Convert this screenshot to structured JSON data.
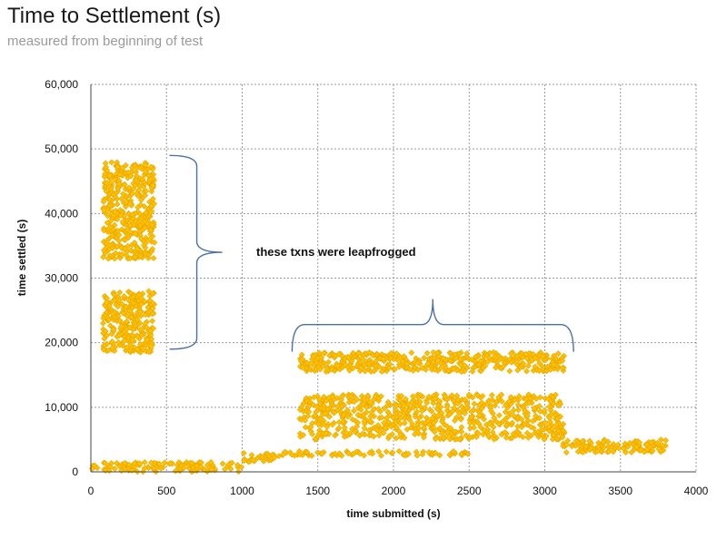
{
  "chart_data": {
    "type": "scatter",
    "title": "Time to Settlement (s)",
    "subtitle": "measured from beginning of test",
    "xlabel": "time submitted  (s)",
    "ylabel": "time settled  (s)",
    "xlim": [
      0,
      4000
    ],
    "ylim": [
      0,
      60000
    ],
    "x_ticks": [
      "0",
      "500",
      "1000",
      "1500",
      "2000",
      "2500",
      "3000",
      "3500",
      "4000"
    ],
    "y_ticks": [
      "0",
      "10,000",
      "20,000",
      "30,000",
      "40,000",
      "50,000",
      "60,000"
    ],
    "grid": true,
    "marker_color": "#FFC000",
    "annotations": [
      {
        "text": "these txns were leapfrogged",
        "brace": "vertical",
        "range_y": [
          19000,
          49000
        ],
        "x": 700
      },
      {
        "text": "",
        "brace": "horizontal",
        "range_x": [
          1330,
          3190
        ],
        "y": 20000
      }
    ],
    "series": [
      {
        "clusters": [
          {
            "x": [
              0,
              1000
            ],
            "y": [
              0,
              1500
            ]
          },
          {
            "x": [
              1000,
              1250
            ],
            "y": [
              1500,
              2900
            ]
          },
          {
            "x": [
              1250,
              2500
            ],
            "y": [
              2500,
              3200
            ]
          },
          {
            "x": [
              80,
              420
            ],
            "y": [
              18500,
              28000
            ]
          },
          {
            "x": [
              80,
              420
            ],
            "y": [
              33000,
              48000
            ]
          },
          {
            "x": [
              1380,
              3130
            ],
            "y": [
              5000,
              12000
            ]
          },
          {
            "x": [
              1380,
              3130
            ],
            "y": [
              15500,
              18500
            ]
          },
          {
            "x": [
              3120,
              3800
            ],
            "y": [
              3000,
              5000
            ]
          }
        ]
      }
    ]
  }
}
